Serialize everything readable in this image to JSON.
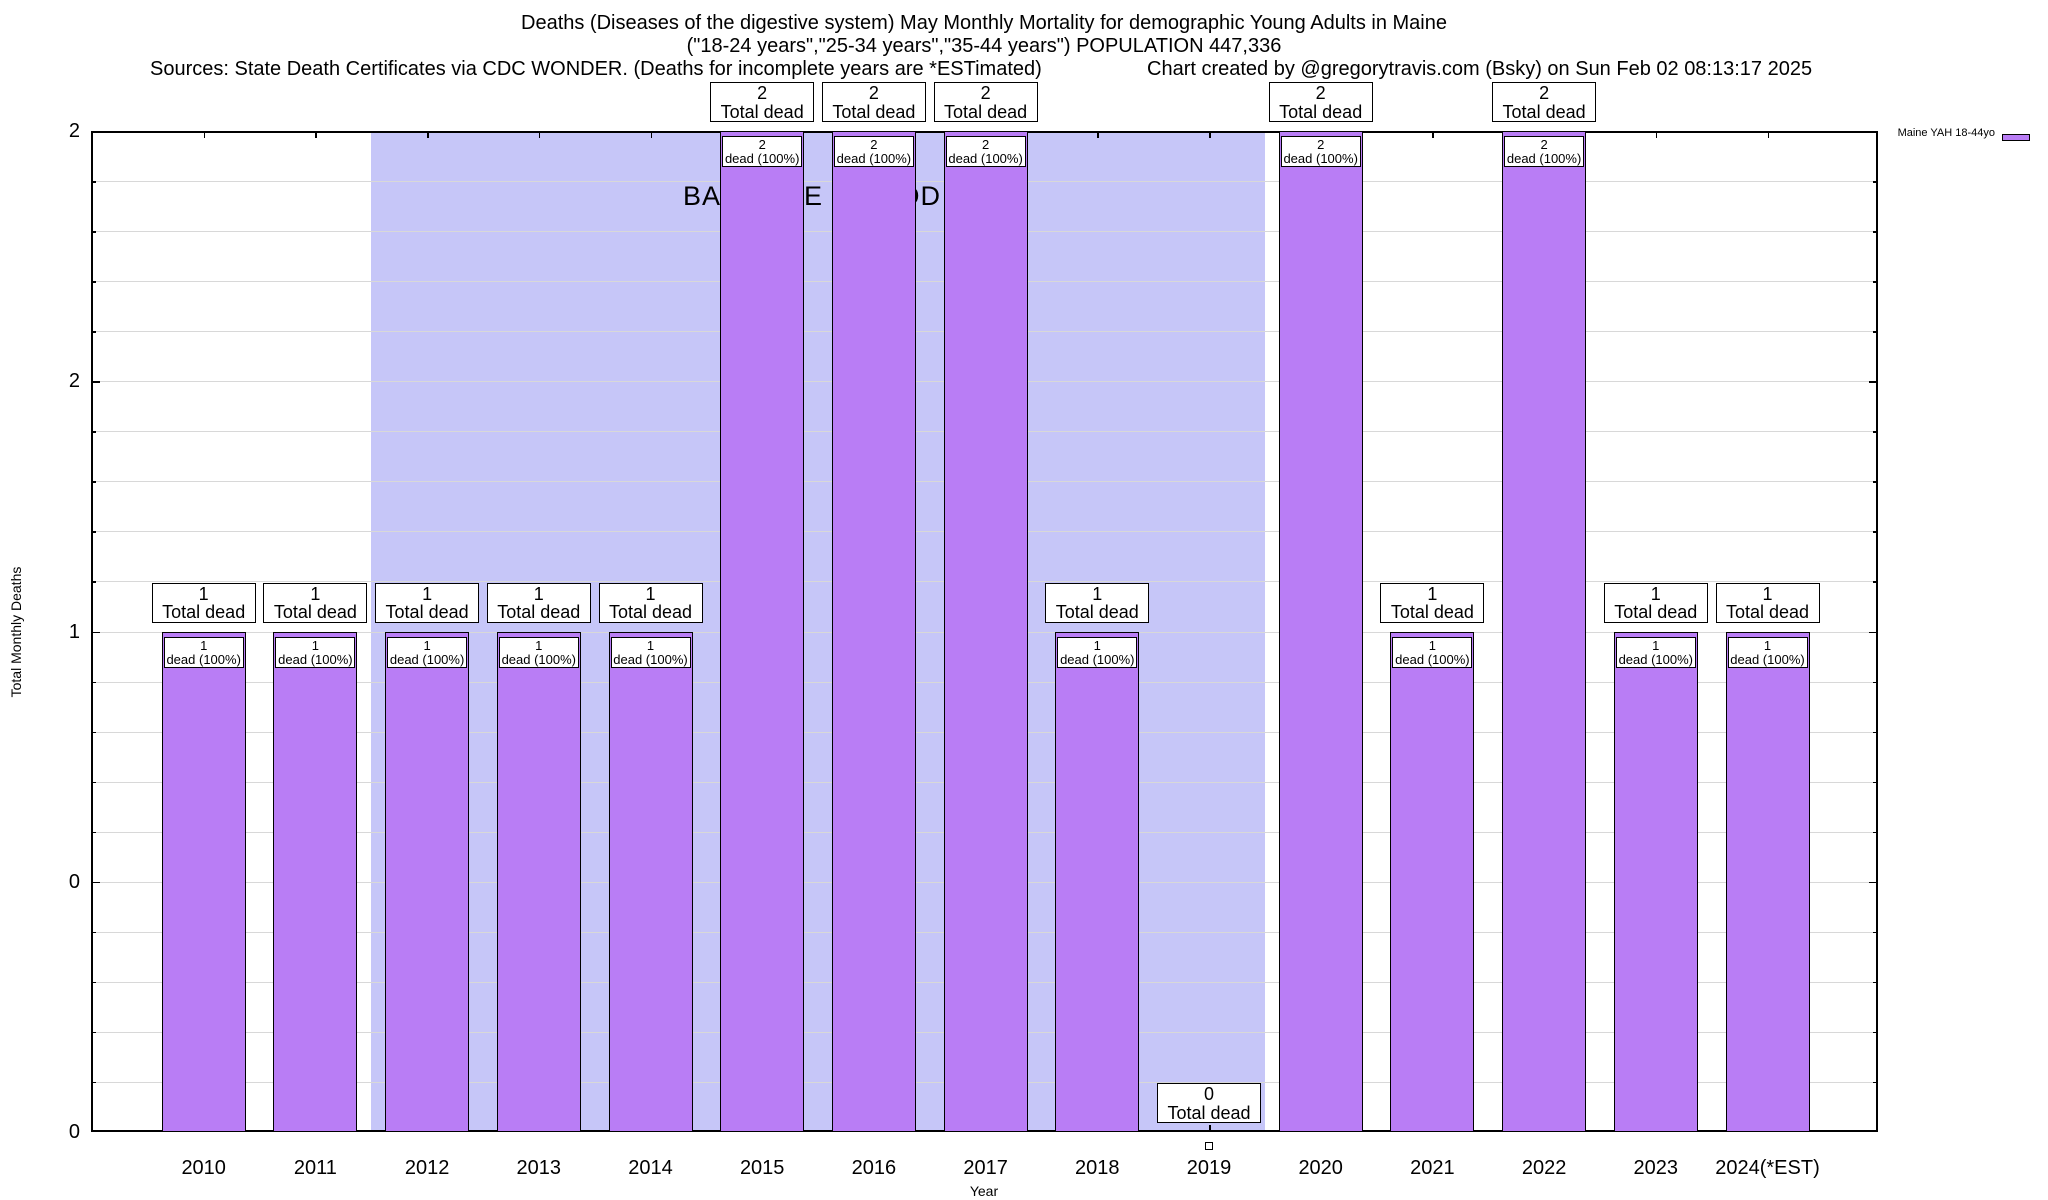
{
  "header": {
    "title_line1": "Deaths (Diseases of the digestive system) May Monthly Mortality for demographic Young Adults in Maine",
    "title_line2": "(\"18-24 years\",\"25-34 years\",\"35-44 years\") POPULATION 447,336",
    "sources": "Sources: State Death Certificates via CDC WONDER. (Deaths for incomplete years are *ESTimated)",
    "credit": "Chart created by @gregorytravis.com (Bsky) on Sun Feb 02 08:13:17 2025"
  },
  "chart_data": {
    "type": "bar",
    "title": "Deaths (Diseases of the digestive system) May Monthly Mortality for demographic Young Adults in Maine (\"18-24 years\",\"25-34 years\",\"35-44 years\") POPULATION 447,336",
    "xlabel": "Year",
    "ylabel": "Total Monthly Deaths",
    "ylim": [
      0,
      2
    ],
    "grid": "horizontal gridlines every 0.1, ticks mirrored on all borders",
    "legend_position": "top-right outside plot",
    "legend_label": "Maine YAH 18-44yo",
    "categories": [
      "2010",
      "2011",
      "2012",
      "2013",
      "2014",
      "2015",
      "2016",
      "2017",
      "2018",
      "2019",
      "2020",
      "2021",
      "2022",
      "2023",
      "2024(*EST)"
    ],
    "values": [
      1,
      1,
      1,
      1,
      1,
      2,
      2,
      2,
      1,
      0,
      2,
      1,
      2,
      1,
      1
    ],
    "bar_total_label": "Total dead",
    "bar_inner_label": "dead (100%)",
    "y_ticks": [
      {
        "value": 2.0,
        "label": "2"
      },
      {
        "value": 1.5,
        "label": "2"
      },
      {
        "value": 1.0,
        "label": "1"
      },
      {
        "value": 0.5,
        "label": "0"
      },
      {
        "value": 0.0,
        "label": "0"
      }
    ],
    "baseline_region": {
      "label": "BASELINE PERIOD",
      "from_category": "2012",
      "to_category": "2019",
      "color": "#c6c6f8"
    },
    "bar_color": "#b97df5",
    "bar_border_color": "#000000"
  }
}
